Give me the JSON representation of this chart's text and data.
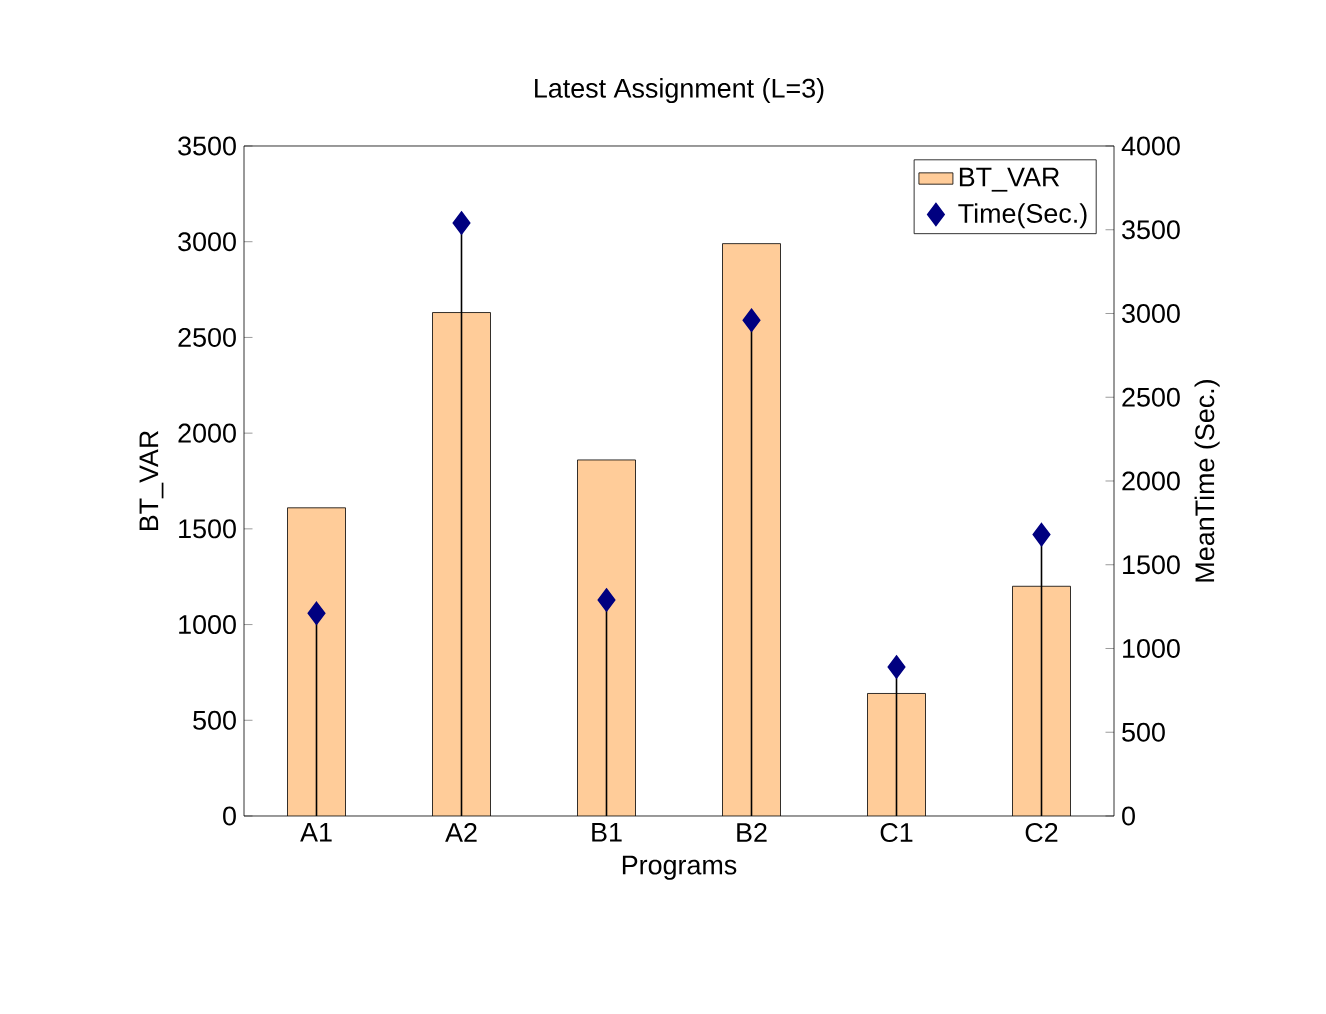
{
  "chart_data": {
    "type": "bar",
    "title": "Latest Assignment (L=3)",
    "xlabel": "Programs",
    "ylabel": "BT_VAR",
    "y2label": "MeanTime (Sec.)",
    "categories": [
      "A1",
      "A2",
      "B1",
      "B2",
      "C1",
      "C2"
    ],
    "series": [
      {
        "name": "BT_VAR",
        "color": "#ffcc99",
        "values": [
          1610,
          2630,
          1860,
          2990,
          640,
          1200
        ]
      },
      {
        "name": "Time(Sec.)",
        "type": "lollipop",
        "axis": "y2",
        "color": "#000080",
        "values": [
          1210,
          3540,
          1290,
          2960,
          890,
          1680
        ]
      }
    ],
    "marker": "diamond",
    "ylim": [
      0,
      3500
    ],
    "yticks": [
      0,
      500,
      1000,
      1500,
      2000,
      2500,
      3000,
      3500
    ],
    "y2lim": [
      0,
      4000
    ],
    "y2ticks": [
      0,
      500,
      1000,
      1500,
      2000,
      2500,
      3000,
      3500,
      4000
    ],
    "legend": "top right"
  }
}
